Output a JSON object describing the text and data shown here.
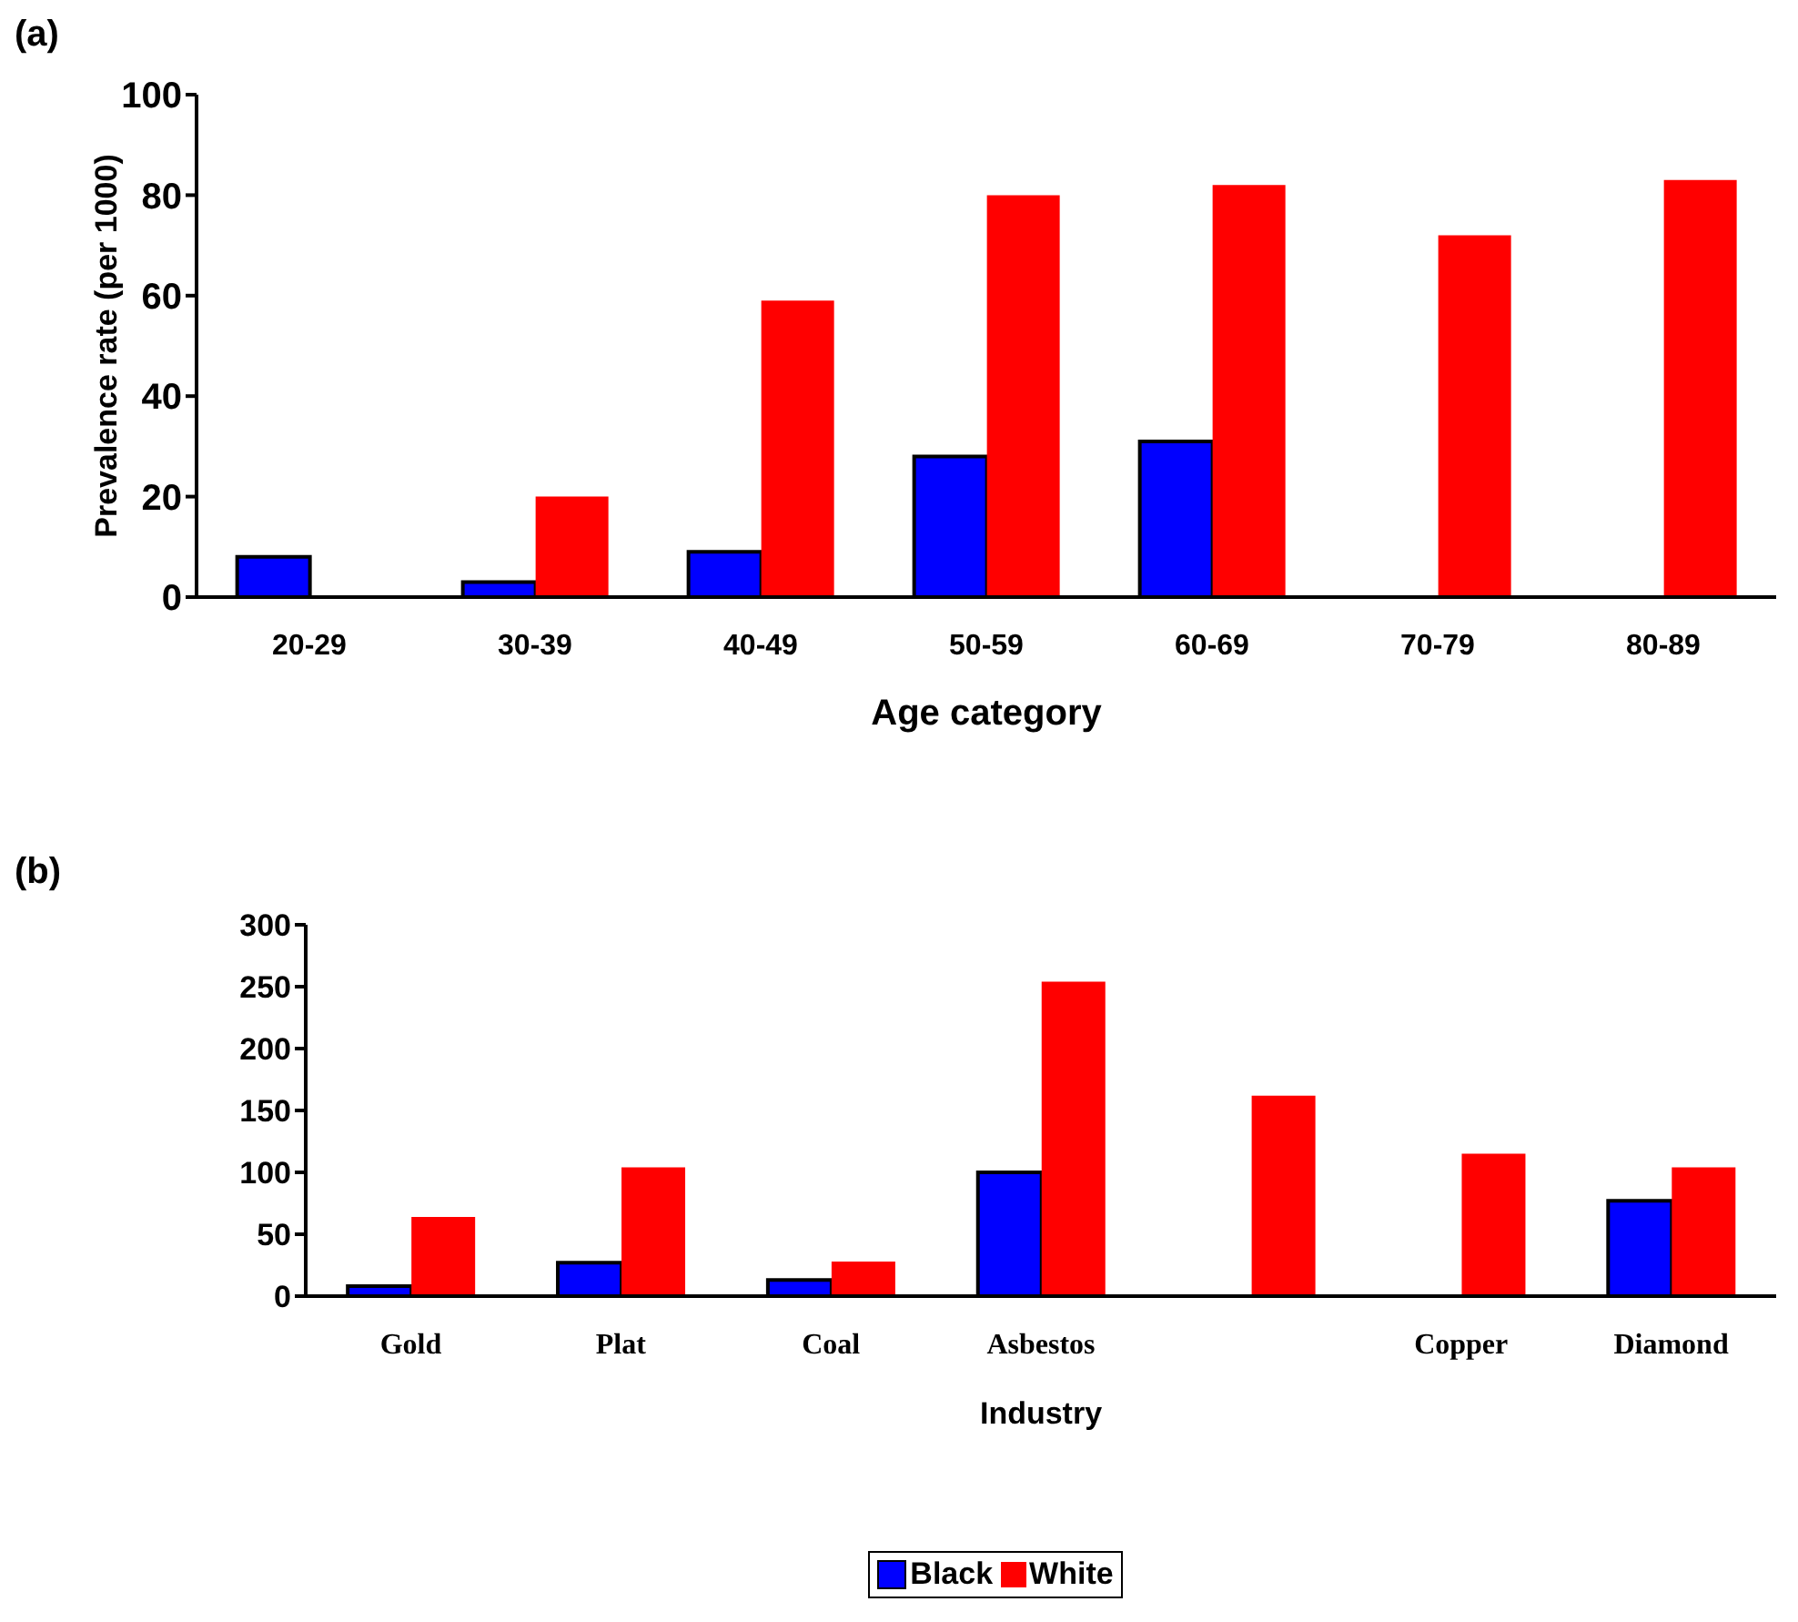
{
  "chart_data": [
    {
      "type": "bar",
      "title": "(a)",
      "xlabel": "Age category",
      "ylabel": "Prevalence rate (per 1000)",
      "categories": [
        "20-29",
        "30-39",
        "40-49",
        "50-59",
        "60-69",
        "70-79",
        "80-89"
      ],
      "series": [
        {
          "color": "#0000ff",
          "values": [
            8,
            3,
            9,
            28,
            31,
            null,
            null
          ]
        },
        {
          "color": "#ff0000",
          "values": [
            null,
            20,
            59,
            80,
            82,
            72,
            83
          ]
        }
      ],
      "ylim": [
        0,
        100
      ],
      "yticks": [
        0,
        20,
        40,
        60,
        80,
        100
      ],
      "grid": false,
      "legend": false
    },
    {
      "type": "bar",
      "title": "(b)",
      "xlabel": "Industry",
      "categories": [
        "Gold",
        "Plat",
        "Coal",
        "Asbestos",
        null,
        "Copper",
        "Diamond"
      ],
      "series": [
        {
          "name": "Black",
          "color": "#0000ff",
          "values": [
            8,
            27,
            13,
            100,
            null,
            null,
            77
          ]
        },
        {
          "name": "White",
          "color": "#ff0000",
          "values": [
            64,
            104,
            28,
            254,
            162,
            115,
            104
          ]
        }
      ],
      "ylim": [
        0,
        300
      ],
      "yticks": [
        0,
        50,
        100,
        150,
        200,
        250,
        300
      ],
      "grid": false,
      "legend": "bottom"
    }
  ]
}
